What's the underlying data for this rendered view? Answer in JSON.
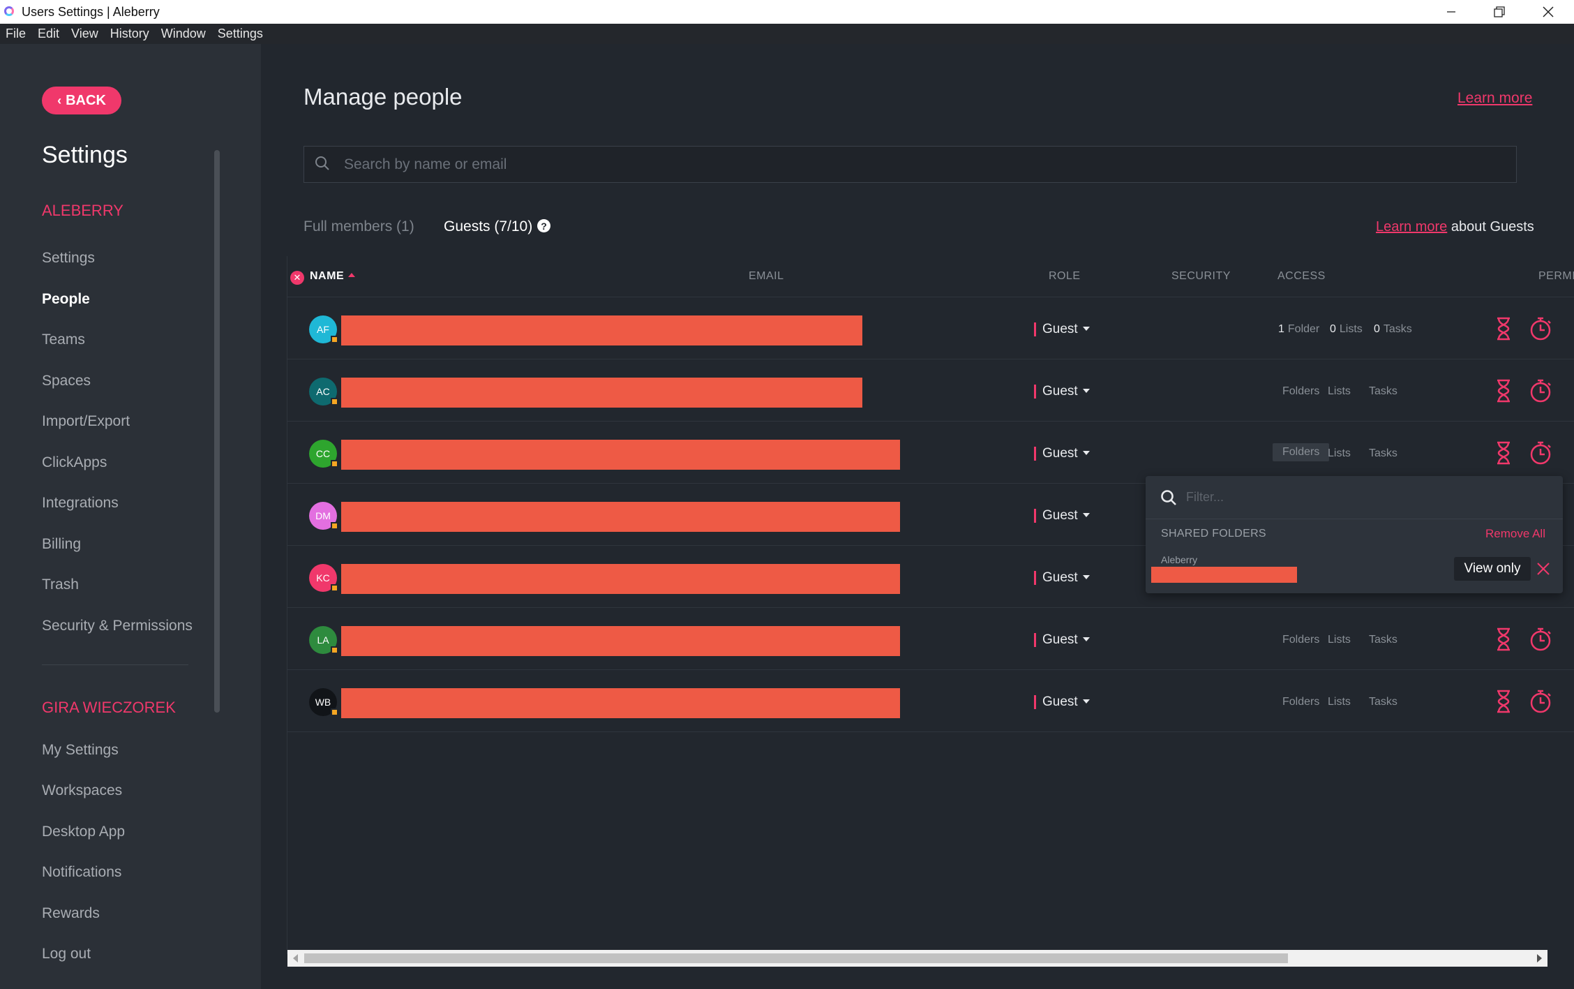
{
  "window": {
    "title": "Users Settings | Aleberry"
  },
  "menu": [
    "File",
    "Edit",
    "View",
    "History",
    "Window",
    "Settings"
  ],
  "sidebar": {
    "back_label": "BACK",
    "title": "Settings",
    "workspace_section": "ALEBERRY",
    "workspace_items": [
      "Settings",
      "People",
      "Teams",
      "Spaces",
      "Import/Export",
      "ClickApps",
      "Integrations",
      "Billing",
      "Trash",
      "Security & Permissions"
    ],
    "active_item": "People",
    "user_section": "GIRA WIECZOREK",
    "user_items": [
      "My Settings",
      "Workspaces",
      "Desktop App",
      "Notifications",
      "Rewards",
      "Log out"
    ]
  },
  "main": {
    "title": "Manage people",
    "learn_more": "Learn more",
    "search_placeholder": "Search by name or email",
    "tabs": {
      "members": "Full members (1)",
      "guests": "Guests (7/10)"
    },
    "learn_guests_link": "Learn more",
    "learn_guests_suffix": " about Guests",
    "columns": {
      "name": "NAME",
      "email": "EMAIL",
      "role": "ROLE",
      "security": "SECURITY",
      "access": "ACCESS",
      "permissions": "PERMIS"
    }
  },
  "rows": [
    {
      "initials": "AF",
      "avatar_color": "#1fb8d6",
      "role": "Guest",
      "access": {
        "folders_count": "1",
        "folders": "Folder",
        "lists_count": "0",
        "lists": "Lists",
        "tasks_count": "0",
        "tasks": "Tasks"
      }
    },
    {
      "initials": "AC",
      "avatar_color": "#0e6a6f",
      "role": "Guest",
      "access": {
        "folders": "Folders",
        "lists": "Lists",
        "tasks": "Tasks"
      }
    },
    {
      "initials": "CC",
      "avatar_color": "#2ea52e",
      "role": "Guest",
      "access": {
        "folders": "Folders",
        "lists": "Lists",
        "tasks": "Tasks"
      }
    },
    {
      "initials": "DM",
      "avatar_color": "#e36fe0",
      "role": "Guest"
    },
    {
      "initials": "KC",
      "avatar_color": "#f0386b",
      "role": "Guest"
    },
    {
      "initials": "LA",
      "avatar_color": "#2e8b3e",
      "role": "Guest",
      "access": {
        "folders": "Folders",
        "lists": "Lists",
        "tasks": "Tasks"
      }
    },
    {
      "initials": "WB",
      "avatar_color": "#111418",
      "role": "Guest",
      "access": {
        "folders": "Folders",
        "lists": "Lists",
        "tasks": "Tasks"
      }
    }
  ],
  "popup": {
    "filter_placeholder": "Filter...",
    "section_label": "SHARED FOLDERS",
    "remove_all": "Remove All",
    "folder_workspace": "Aleberry",
    "permission": "View only"
  },
  "colors": {
    "accent": "#f0386b",
    "redaction": "#ee5a45",
    "background": "#22272e",
    "sidebar": "#2b3037"
  },
  "icons": {
    "row_permission_1": "hourglass-icon",
    "row_permission_2": "stopwatch-icon"
  }
}
